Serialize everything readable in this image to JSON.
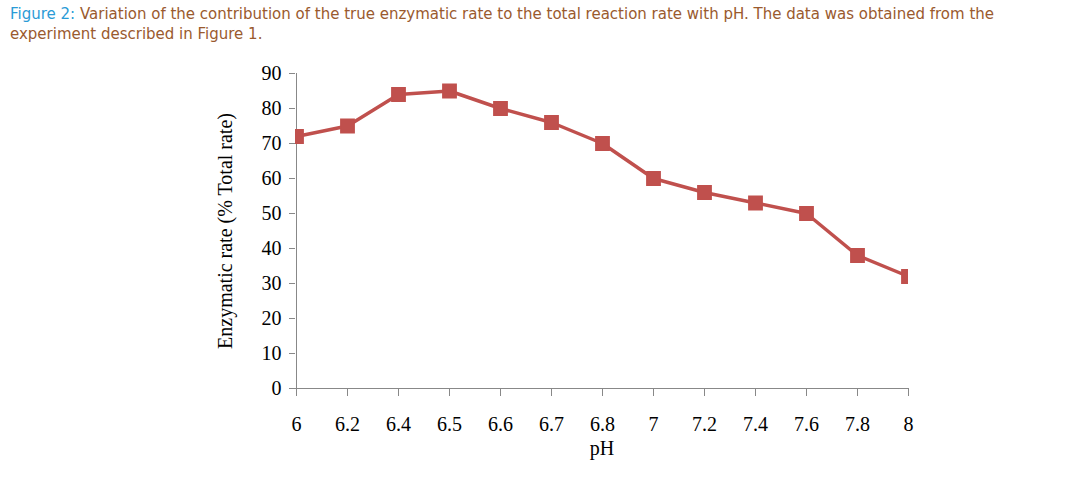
{
  "chart_data": {
    "type": "line",
    "title": "Figure 2: Variation of the contribution of the true enzymatic rate to the total reaction rate with pH. The data was obtained from the experiment described in Figure 1.",
    "x_label": "pH",
    "y_label": "Enzymatic rate (% Total rate)",
    "categories": [
      "6",
      "6.2",
      "6.4",
      "6.5",
      "6.6",
      "6.7",
      "6.8",
      "7",
      "7.2",
      "7.4",
      "7.6",
      "7.8",
      "8"
    ],
    "values": [
      72,
      75,
      84,
      85,
      80,
      76,
      70,
      60,
      56,
      53,
      50,
      38,
      32
    ],
    "color": "#c0504d",
    "marker": "square",
    "line_style": "solid",
    "ylim": [
      0,
      90
    ],
    "yticks": [
      0,
      10,
      20,
      30,
      40,
      50,
      60,
      70,
      80,
      90
    ],
    "grid": false
  }
}
